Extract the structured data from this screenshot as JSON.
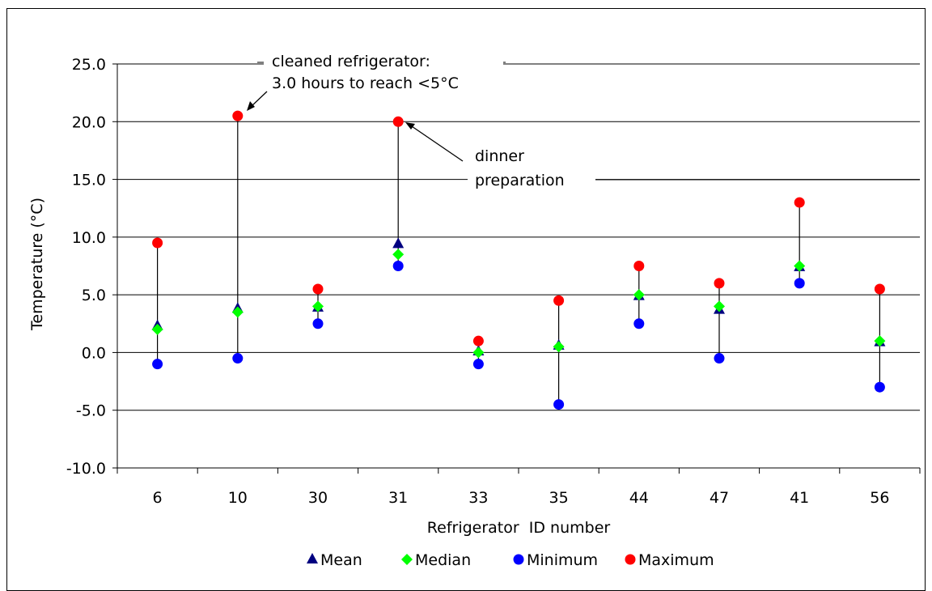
{
  "chart_data": {
    "type": "scatter",
    "title": "",
    "xlabel": "Refrigerator  ID number",
    "ylabel": "Temperature (°C)",
    "ylim": [
      -10,
      25
    ],
    "ytick_step": 5,
    "ytick_labels": [
      "-10.0",
      "-5.0",
      "0.0",
      "5.0",
      "10.0",
      "15.0",
      "20.0",
      "25.0"
    ],
    "grid": true,
    "legend_position": "bottom",
    "categories": [
      "6",
      "10",
      "30",
      "31",
      "33",
      "35",
      "44",
      "47",
      "41",
      "56"
    ],
    "series": [
      {
        "name": "Mean",
        "marker": "triangle",
        "color": "#000080",
        "values": [
          2.3,
          3.8,
          3.9,
          9.4,
          0.1,
          0.6,
          4.9,
          3.7,
          7.4,
          0.9
        ]
      },
      {
        "name": "Median",
        "marker": "diamond",
        "color": "#00ff00",
        "values": [
          2.0,
          3.5,
          4.0,
          8.5,
          0.0,
          0.5,
          5.0,
          4.0,
          7.5,
          1.0
        ]
      },
      {
        "name": "Minimum",
        "marker": "circle",
        "color": "#0000ff",
        "values": [
          -1.0,
          -0.5,
          2.5,
          7.5,
          -1.0,
          -4.5,
          2.5,
          -0.5,
          6.0,
          -3.0
        ]
      },
      {
        "name": "Maximum",
        "marker": "circle",
        "color": "#ff0000",
        "values": [
          9.5,
          20.5,
          5.5,
          20.0,
          1.0,
          4.5,
          7.5,
          6.0,
          13.0,
          5.5
        ]
      }
    ],
    "annotations": [
      {
        "lines": [
          "cleaned refrigerator:",
          "3.0 hours to reach <5°C"
        ],
        "category": "10",
        "y": 20.5
      },
      {
        "lines": [
          "dinner",
          "preparation"
        ],
        "category": "31",
        "y": 20.0
      }
    ]
  }
}
